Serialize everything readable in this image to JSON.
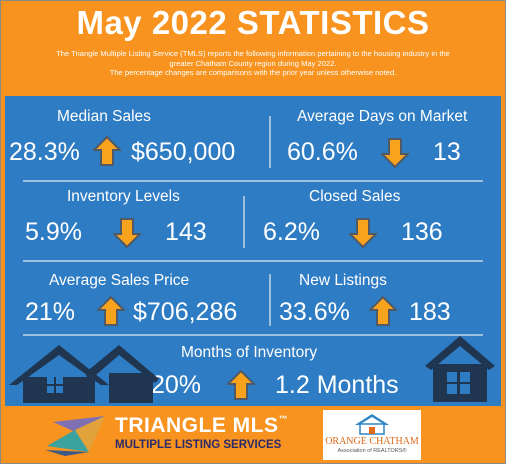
{
  "header": {
    "title": "May 2022 STATISTICS",
    "intro_line1": "The Triangle Multiple Listing Service (TMLS) reports the following information pertaining to the housing industry in the",
    "intro_line2": "greater Chatham County region during May 2022.",
    "intro_line3": "The percentage changes are comparisons with the prior year unless otherwise noted."
  },
  "stats": {
    "median_sales": {
      "label": "Median Sales",
      "percent": "28.3%",
      "direction": "up",
      "value": "$650,000"
    },
    "avg_days": {
      "label": "Average Days on Market",
      "percent": "60.6%",
      "direction": "down",
      "value": "13"
    },
    "inventory": {
      "label": "Inventory Levels",
      "percent": "5.9%",
      "direction": "down",
      "value": "143"
    },
    "closed_sales": {
      "label": "Closed Sales",
      "percent": "6.2%",
      "direction": "down",
      "value": "136"
    },
    "avg_price": {
      "label": "Average Sales Price",
      "percent": "21%",
      "direction": "up",
      "value": "$706,286"
    },
    "new_listings": {
      "label": "New Listings",
      "percent": "33.6%",
      "direction": "up",
      "value": "183"
    },
    "months_inventory": {
      "label": "Months of Inventory",
      "percent": "20%",
      "direction": "up",
      "value": "1.2 Months"
    }
  },
  "footer": {
    "tmls_name": "TRIANGLE MLS",
    "tmls_tm": "™",
    "tmls_sub": "MULTIPLE LISTING SERVICES",
    "oc_name": "ORANGE CHATHAM",
    "oc_sub": "Association of REALTORS®"
  },
  "colors": {
    "orange": "#f7931e",
    "blue": "#2e7cc4",
    "arrow_orange": "#f9a21b",
    "arrow_gray": "#505a66",
    "house_dark": "#1f3550"
  },
  "icons": [
    "up-arrow-icon",
    "down-arrow-icon",
    "house-icon",
    "triangle-mls-logo",
    "orange-chatham-logo"
  ]
}
